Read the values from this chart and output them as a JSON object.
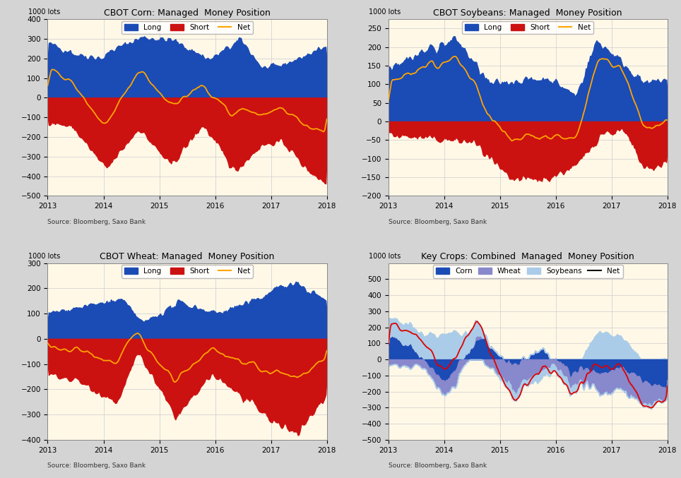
{
  "titles": [
    "CBOT Corn: Managed  Money Position",
    "CBOT Soybeans: Managed  Money Position",
    "CBOT Wheat: Managed  Money Position",
    "Key Crops: Combined  Managed  Money Position"
  ],
  "ylabel": "1000 lots",
  "source": "Source: Bloomberg, Saxo Bank",
  "bg_color": "#FFF8E7",
  "long_color": "#1B4BB5",
  "short_color": "#CC1111",
  "net_color": "#FFA500",
  "corn_ylim": [
    -500,
    400
  ],
  "soy_ylim": [
    -200,
    275
  ],
  "wheat_ylim": [
    -400,
    300
  ],
  "combined_ylim": [
    -500,
    600
  ],
  "corn_yticks": [
    -500,
    -400,
    -300,
    -200,
    -100,
    0,
    100,
    200,
    300,
    400
  ],
  "soy_yticks": [
    -200,
    -150,
    -100,
    -50,
    0,
    50,
    100,
    150,
    200,
    250
  ],
  "wheat_yticks": [
    -400,
    -300,
    -200,
    -100,
    0,
    100,
    200,
    300
  ],
  "combined_yticks": [
    -500,
    -400,
    -300,
    -200,
    -100,
    0,
    100,
    200,
    300,
    400,
    500
  ],
  "corn_color": "#1B4BB5",
  "wheat_color": "#8888CC",
  "soy_color": "#AACCE8",
  "net_line_color": "#DD0000",
  "grid_color": "#CCCCCC",
  "fig_bg": "#D4D4D4"
}
